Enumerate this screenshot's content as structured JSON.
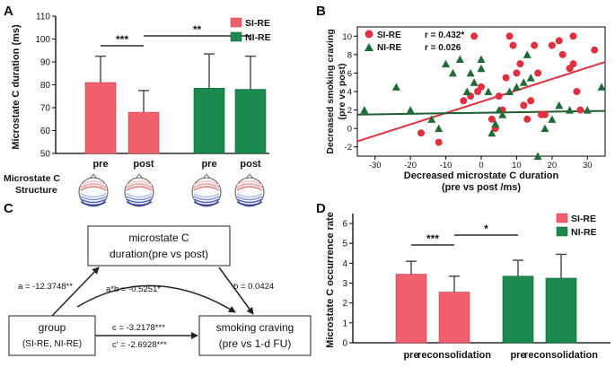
{
  "panel_labels": {
    "a": "A",
    "b": "B",
    "c": "C",
    "d": "D"
  },
  "colors": {
    "si_re": "#f0606d",
    "ni_re": "#1a8a4f",
    "red_line": "#e03040",
    "green_line": "#1f5e2e"
  },
  "chart_data": [
    {
      "type": "bar",
      "panel": "A",
      "ylabel": "Microstate C duration (ms)",
      "ylim": [
        50,
        110
      ],
      "yticks": [
        50,
        60,
        70,
        80,
        90,
        100,
        110
      ],
      "categories": [
        "pre",
        "post",
        "pre",
        "post"
      ],
      "groups": [
        "SI-RE",
        "SI-RE",
        "NI-RE",
        "NI-RE"
      ],
      "values": [
        81,
        68,
        78.5,
        78
      ],
      "errors": [
        11.5,
        9.5,
        15,
        14.5
      ],
      "legend": [
        "SI-RE",
        "NI-RE"
      ],
      "significance": [
        {
          "label": "***",
          "from": 0,
          "to": 1
        },
        {
          "label": "**",
          "from": 1,
          "to": 3
        }
      ],
      "topomap_label": [
        "Microstate C",
        "Structure"
      ]
    },
    {
      "type": "scatter",
      "panel": "B",
      "xlabel": [
        "Decreased microstate C duration",
        "(pre vs post /ms)"
      ],
      "ylabel": [
        "Decreased smoking craving",
        "(pre vs post)"
      ],
      "xlim": [
        -35,
        35
      ],
      "ylim": [
        -3,
        11
      ],
      "xticks": [
        -30,
        -20,
        -10,
        0,
        10,
        20,
        30
      ],
      "yticks": [
        -2,
        0,
        2,
        4,
        6,
        8,
        10
      ],
      "series": [
        {
          "name": "SI-RE",
          "stat": "r = 0.432*",
          "points": [
            [
              -2,
              10
            ],
            [
              -3,
              3.5
            ],
            [
              -5,
              3
            ],
            [
              -1,
              4
            ],
            [
              0,
              4.5
            ],
            [
              3,
              1
            ],
            [
              4,
              0
            ],
            [
              5,
              3.5
            ],
            [
              6,
              2
            ],
            [
              7,
              5.5
            ],
            [
              8,
              10
            ],
            [
              9,
              9
            ],
            [
              10,
              6
            ],
            [
              11,
              7
            ],
            [
              12,
              2.5
            ],
            [
              13,
              1
            ],
            [
              14,
              3
            ],
            [
              15,
              9
            ],
            [
              16,
              6
            ],
            [
              17,
              1.5
            ],
            [
              18,
              1.5
            ],
            [
              20,
              9
            ],
            [
              22,
              9.5
            ],
            [
              23,
              8
            ],
            [
              25,
              6.5
            ],
            [
              26,
              10
            ],
            [
              26,
              7
            ],
            [
              27,
              4
            ],
            [
              28,
              2
            ],
            [
              32,
              8.5
            ],
            [
              -17,
              -0.5
            ],
            [
              -12,
              -1.5
            ]
          ],
          "fit": [
            [
              -35,
              -1.4
            ],
            [
              35,
              7.2
            ]
          ]
        },
        {
          "name": "NI-RE",
          "stat": "r = 0.026",
          "points": [
            [
              -33,
              2
            ],
            [
              -24,
              4.5
            ],
            [
              -20,
              2
            ],
            [
              -14,
              1
            ],
            [
              -12,
              0
            ],
            [
              -10,
              7
            ],
            [
              -8,
              6
            ],
            [
              -4,
              4
            ],
            [
              -3,
              6
            ],
            [
              -2,
              5
            ],
            [
              0,
              6.5
            ],
            [
              2,
              4
            ],
            [
              3,
              -0.5
            ],
            [
              4,
              0.5
            ],
            [
              5,
              2
            ],
            [
              6,
              1.5
            ],
            [
              8,
              4
            ],
            [
              10,
              4.5
            ],
            [
              12,
              5
            ],
            [
              13,
              8
            ],
            [
              14,
              5.5
            ],
            [
              16,
              -3
            ],
            [
              18,
              0
            ],
            [
              20,
              1
            ],
            [
              22,
              2.5
            ],
            [
              25,
              2
            ],
            [
              30,
              2
            ],
            [
              34,
              4.5
            ],
            [
              -6,
              7.5
            ],
            [
              0,
              7.5
            ]
          ],
          "fit": [
            [
              -35,
              1.5
            ],
            [
              35,
              1.9
            ]
          ]
        }
      ]
    },
    {
      "type": "bar",
      "panel": "D",
      "ylabel": "Microstate C occurrence rate",
      "ylim": [
        0,
        6.5
      ],
      "yticks": [
        0,
        1,
        2,
        3,
        4,
        5,
        6
      ],
      "categories": [
        "pre",
        "reconsolidation",
        "pre",
        "reconsolidation"
      ],
      "groups": [
        "SI-RE",
        "SI-RE",
        "NI-RE",
        "NI-RE"
      ],
      "values": [
        3.45,
        2.55,
        3.35,
        3.25
      ],
      "errors": [
        0.65,
        0.8,
        0.8,
        1.2
      ],
      "legend": [
        "SI-RE",
        "NI-RE"
      ],
      "significance": [
        {
          "label": "***",
          "from": 0,
          "to": 1
        },
        {
          "label": "*",
          "from": 1,
          "to": 2
        }
      ]
    }
  ],
  "mediation": {
    "top_box": [
      "microstate C",
      "duration(pre vs post)"
    ],
    "left_box": [
      "group",
      "(SI-RE, NI-RE)"
    ],
    "right_box": [
      "smoking craving",
      "(pre vs 1-d FU)"
    ],
    "a": "a = -12.3748**",
    "b": "b = 0.0424",
    "ab": "a*b = -0.5251*",
    "c": "c = -3.2178***",
    "c_prime": "c' = -2.6928***"
  }
}
